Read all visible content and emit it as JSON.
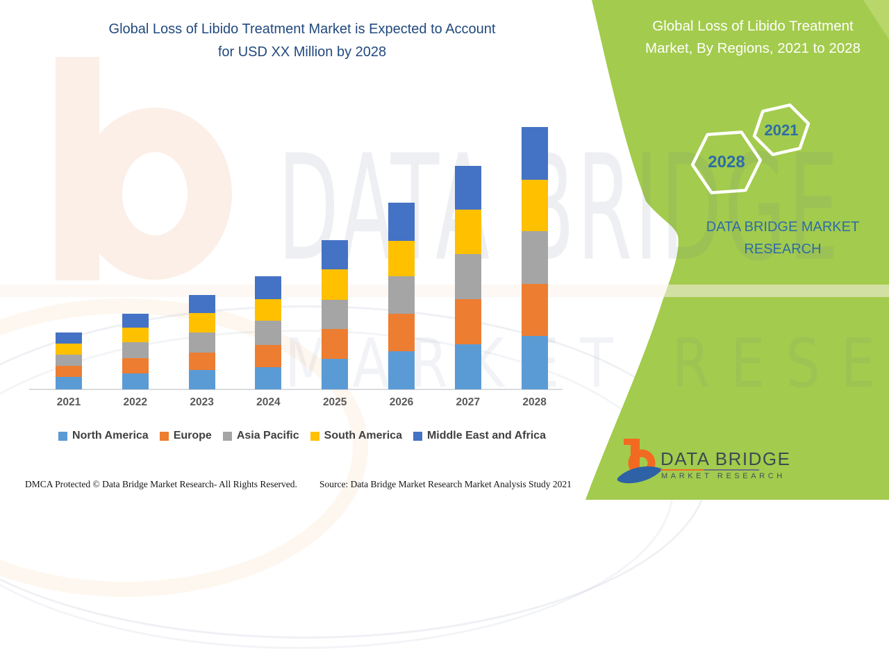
{
  "header": {
    "title_line1": "Global Loss of Libido Treatment Market is Expected to Account",
    "title_line2": "for USD XX Million by 2028"
  },
  "right_panel": {
    "title_line1": "Global Loss of Libido Treatment",
    "title_line2": "Market, By Regions, 2021 to 2028",
    "hex_small_label": "2021",
    "hex_large_label": "2028",
    "brand_line1": "DATA BRIDGE MARKET",
    "brand_line2": "RESEARCH"
  },
  "watermark": {
    "line1": "DATA BRIDGE",
    "line2": "MARKET RESEARCH"
  },
  "chart_data": {
    "type": "bar",
    "stacked": true,
    "title": "Global Loss of Libido Treatment Market is Expected to Account for USD XX Million by 2028",
    "xlabel": "",
    "ylabel": "",
    "value_units": "relative units (axis unlabeled, USD XX Million)",
    "ylim": [
      0,
      400
    ],
    "grid": false,
    "legend_position": "bottom",
    "categories": [
      "2021",
      "2022",
      "2023",
      "2024",
      "2025",
      "2026",
      "2027",
      "2028"
    ],
    "series": [
      {
        "name": "North America",
        "key": "north_america",
        "color": "#5B9BD5",
        "values": [
          18,
          23,
          28,
          32,
          44,
          55,
          65,
          77
        ]
      },
      {
        "name": "Europe",
        "key": "europe",
        "color": "#ED7D31",
        "values": [
          16,
          22,
          25,
          32,
          43,
          54,
          65,
          75
        ]
      },
      {
        "name": "Asia Pacific",
        "key": "asia_pacific",
        "color": "#A5A5A5",
        "values": [
          16,
          23,
          29,
          35,
          42,
          54,
          65,
          76
        ]
      },
      {
        "name": "South America",
        "key": "south_america",
        "color": "#FFC000",
        "values": [
          16,
          21,
          28,
          31,
          44,
          51,
          64,
          74
        ]
      },
      {
        "name": "Middle East and Africa",
        "key": "middle_east_africa",
        "color": "#4472C4",
        "values": [
          16,
          20,
          26,
          33,
          42,
          55,
          63,
          76
        ]
      }
    ]
  },
  "footer": {
    "dmca": "DMCA Protected © Data Bridge Market Research- All Rights Reserved.",
    "source": "Source: Data Bridge Market Research Market Analysis Study 2021"
  },
  "logo": {
    "name": "DATA BRIDGE",
    "subtitle": "MARKET RESEARCH"
  },
  "colors": {
    "green_panel": "#A3CB4D",
    "green_corner": "#B9D66B",
    "title_blue": "#21497E",
    "teal_text": "#2E6DA4",
    "axis_label": "#595959",
    "legend_text": "#3F3F3F",
    "logo_orange": "#F26A21",
    "logo_blue": "#2E62A6"
  }
}
